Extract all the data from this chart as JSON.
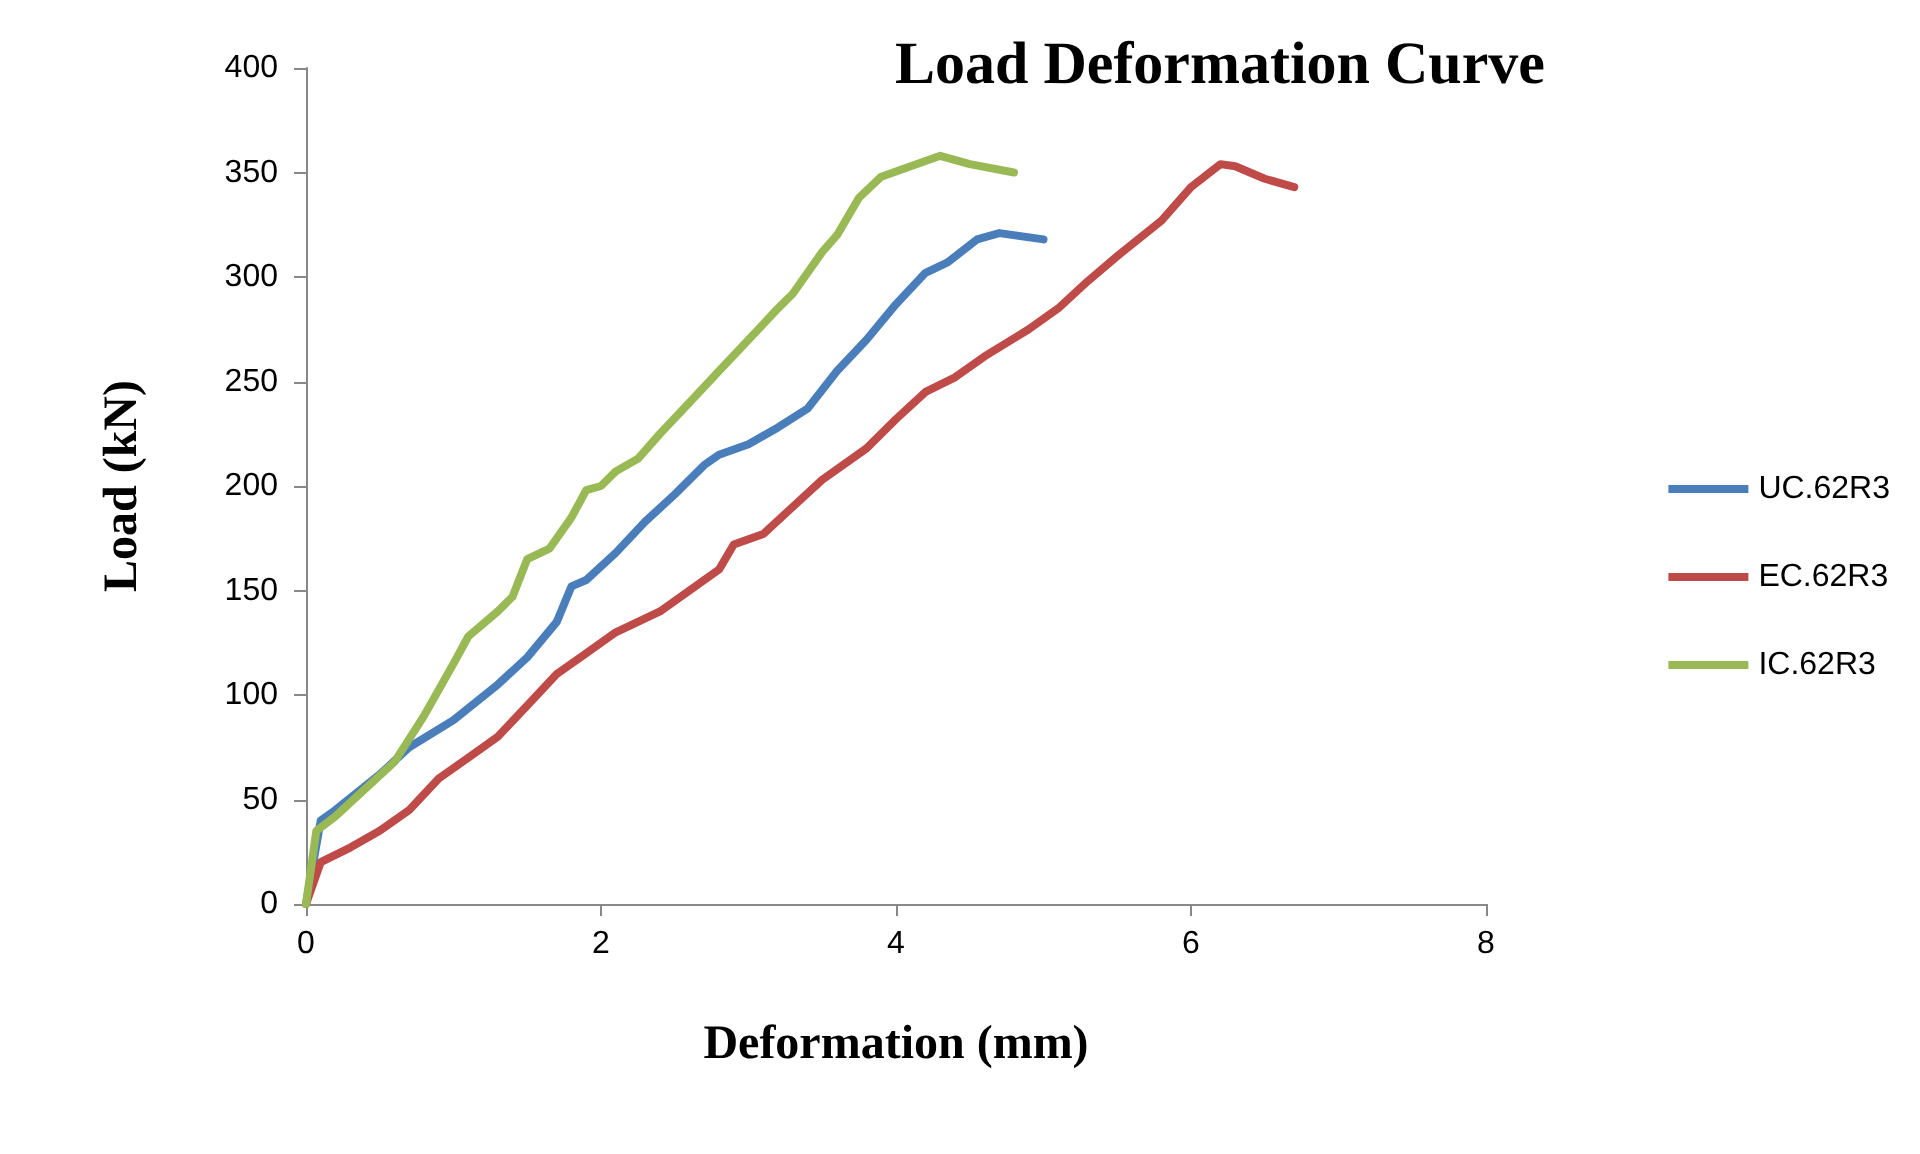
{
  "chart_data": {
    "type": "line",
    "title": "Load Deformation Curve",
    "xlabel": "Deformation (mm)",
    "ylabel": "Load (kN)",
    "xlim": [
      0,
      8
    ],
    "xticks": [
      0,
      2,
      4,
      6,
      8
    ],
    "ylim": [
      0,
      400
    ],
    "yticks": [
      0,
      50,
      100,
      150,
      200,
      250,
      300,
      350,
      400
    ],
    "grid": false,
    "legend": "right",
    "marker": "none",
    "line_style": "solid",
    "series": [
      {
        "name": "UC.62R3",
        "color": "#4a7ebb",
        "x": [
          0,
          0.1,
          0.2,
          0.5,
          0.7,
          1.0,
          1.3,
          1.5,
          1.7,
          1.8,
          1.9,
          2.1,
          2.3,
          2.5,
          2.7,
          2.8,
          3.0,
          3.2,
          3.4,
          3.6,
          3.8,
          4.0,
          4.2,
          4.35,
          4.55,
          4.7,
          5.0
        ],
        "values": [
          0,
          40,
          45,
          62,
          75,
          88,
          105,
          118,
          135,
          152,
          155,
          168,
          183,
          196,
          210,
          215,
          220,
          228,
          237,
          255,
          270,
          287,
          302,
          307,
          318,
          321,
          318
        ]
      },
      {
        "name": "EC.62R3",
        "color": "#be4b48",
        "x": [
          0,
          0.1,
          0.3,
          0.5,
          0.7,
          0.9,
          1.1,
          1.3,
          1.5,
          1.7,
          1.9,
          2.1,
          2.4,
          2.6,
          2.8,
          2.9,
          3.1,
          3.3,
          3.5,
          3.8,
          4.0,
          4.2,
          4.4,
          4.6,
          4.9,
          5.1,
          5.3,
          5.5,
          5.8,
          6.0,
          6.2,
          6.3,
          6.5,
          6.7
        ],
        "values": [
          0,
          20,
          27,
          35,
          45,
          60,
          70,
          80,
          95,
          110,
          120,
          130,
          140,
          150,
          160,
          172,
          177,
          190,
          203,
          218,
          232,
          245,
          252,
          262,
          275,
          285,
          298,
          310,
          327,
          343,
          354,
          353,
          347,
          343
        ]
      },
      {
        "name": "IC.62R3",
        "color": "#98b954",
        "x": [
          0,
          0.07,
          0.2,
          0.4,
          0.6,
          0.8,
          1.0,
          1.1,
          1.3,
          1.4,
          1.5,
          1.65,
          1.8,
          1.9,
          2.0,
          2.1,
          2.25,
          2.4,
          2.6,
          2.8,
          3.0,
          3.2,
          3.3,
          3.5,
          3.6,
          3.75,
          3.9,
          4.1,
          4.3,
          4.5,
          4.8
        ],
        "values": [
          0,
          35,
          42,
          55,
          68,
          90,
          115,
          128,
          140,
          147,
          165,
          170,
          185,
          198,
          200,
          207,
          213,
          225,
          240,
          255,
          270,
          285,
          292,
          312,
          320,
          338,
          348,
          353,
          358,
          354,
          350
        ]
      }
    ]
  }
}
